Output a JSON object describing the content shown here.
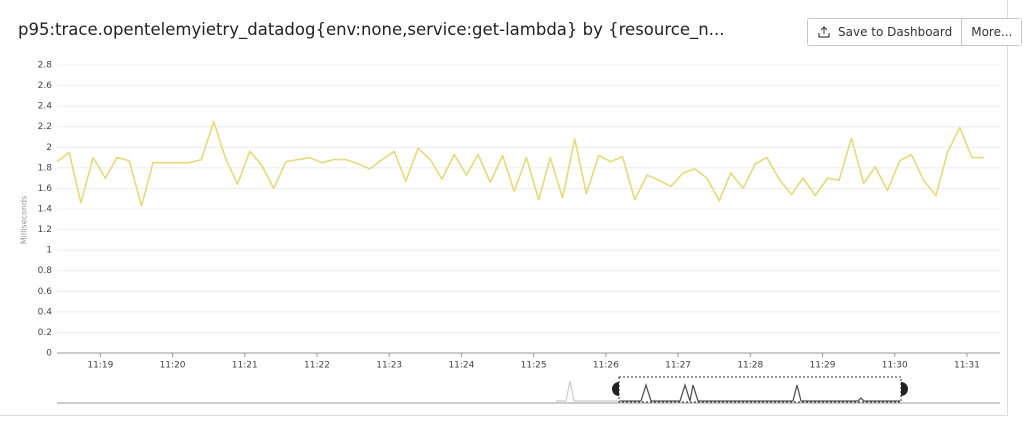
{
  "chart_data": {
    "type": "line",
    "title": "p95:trace.opentelemyietry_datadog{env:none,service:get-lambda} by {resource_n...",
    "y_label": "Milliseconds",
    "color": "#e6d97a",
    "grid": true,
    "x": [
      678.4,
      678.57,
      678.73,
      678.9,
      679.07,
      679.23,
      679.4,
      679.57,
      679.73,
      679.9,
      680.07,
      680.23,
      680.4,
      680.57,
      680.73,
      680.9,
      681.07,
      681.23,
      681.4,
      681.57,
      681.73,
      681.9,
      682.07,
      682.23,
      682.4,
      682.57,
      682.73,
      682.9,
      683.07,
      683.23,
      683.4,
      683.57,
      683.73,
      683.9,
      684.07,
      684.23,
      684.4,
      684.57,
      684.73,
      684.9,
      685.07,
      685.23,
      685.4,
      685.57,
      685.73,
      685.9,
      686.07,
      686.23,
      686.4,
      686.57,
      686.73,
      686.9,
      687.07,
      687.23,
      687.4,
      687.57,
      687.73,
      687.9,
      688.07,
      688.23,
      688.4,
      688.57,
      688.73,
      688.9,
      689.07,
      689.23,
      689.4,
      689.57,
      689.73,
      689.9,
      690.07,
      690.23,
      690.4,
      690.57,
      690.73,
      690.9,
      691.07,
      691.23
    ],
    "values": [
      1.86,
      1.95,
      1.46,
      1.9,
      1.7,
      1.9,
      1.87,
      1.43,
      1.85,
      1.85,
      1.85,
      1.85,
      1.88,
      2.25,
      1.9,
      1.64,
      1.96,
      1.83,
      1.6,
      1.86,
      1.88,
      1.9,
      1.85,
      1.88,
      1.88,
      1.84,
      1.79,
      1.88,
      1.96,
      1.67,
      1.99,
      1.88,
      1.69,
      1.93,
      1.73,
      1.93,
      1.66,
      1.92,
      1.57,
      1.9,
      1.49,
      1.9,
      1.51,
      2.08,
      1.55,
      1.92,
      1.86,
      1.91,
      1.49,
      1.73,
      1.68,
      1.62,
      1.75,
      1.79,
      1.7,
      1.48,
      1.75,
      1.6,
      1.84,
      1.9,
      1.69,
      1.54,
      1.7,
      1.53,
      1.7,
      1.68,
      2.09,
      1.65,
      1.81,
      1.58,
      1.87,
      1.93,
      1.68,
      1.53,
      1.95,
      2.19,
      1.9,
      1.9
    ],
    "xlim": [
      678.4,
      691.25
    ],
    "xticks": [
      {
        "value": 679,
        "label": "11:19"
      },
      {
        "value": 680,
        "label": "11:20"
      },
      {
        "value": 681,
        "label": "11:21"
      },
      {
        "value": 682,
        "label": "11:22"
      },
      {
        "value": 683,
        "label": "11:23"
      },
      {
        "value": 684,
        "label": "11:24"
      },
      {
        "value": 685,
        "label": "11:25"
      },
      {
        "value": 686,
        "label": "11:26"
      },
      {
        "value": 687,
        "label": "11:27"
      },
      {
        "value": 688,
        "label": "11:28"
      },
      {
        "value": 689,
        "label": "11:29"
      },
      {
        "value": 690,
        "label": "11:30"
      },
      {
        "value": 691,
        "label": "11:31"
      }
    ],
    "ylim": [
      0,
      2.8
    ],
    "yticks": [
      0,
      0.2,
      0.4,
      0.6,
      0.8,
      1,
      1.2,
      1.4,
      1.6,
      1.8,
      2,
      2.2,
      2.4,
      2.6,
      2.8
    ]
  },
  "toolbar": {
    "buttons": [
      "Save to Dashboard",
      "More..."
    ]
  }
}
